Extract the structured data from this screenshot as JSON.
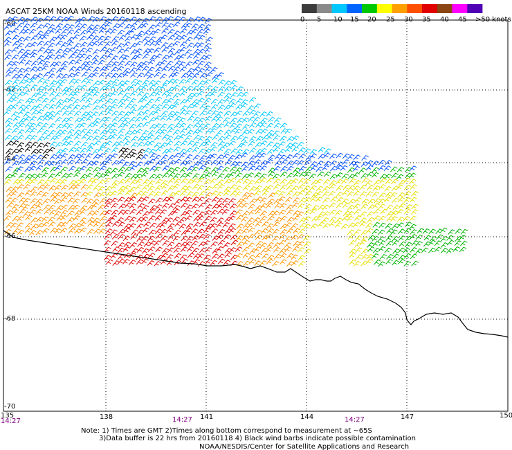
{
  "title": "ASCAT 25KM NOAA Winds 20160118 ascending",
  "legend": {
    "labels": [
      "0",
      "5",
      "10",
      "15",
      "20",
      "25",
      "30",
      "35",
      "40",
      "45",
      ">50 knots"
    ],
    "colors": [
      "#3c3c3c",
      "#8a8a8a",
      "#00c8ff",
      "#0064ff",
      "#00c800",
      "#ffff00",
      "#ffa000",
      "#ff5000",
      "#e00000",
      "#8b4513",
      "#ff00ff",
      "#5000b4"
    ]
  },
  "axes": {
    "lon_labels": [
      "135",
      "138",
      "141",
      "144",
      "147",
      "150"
    ],
    "lat_labels": [
      "-60",
      "-62",
      "-64",
      "-66",
      "-68",
      "-70"
    ]
  },
  "times": [
    "14:27",
    "14:27",
    "14:27"
  ],
  "notes": [
    "Note: 1) Times are GMT 2)Times along bottom correspond to measurement at ~65S",
    "3)Data buffer is 22 hrs from 20160118 4) Black wind barbs indicate possible contamination",
    "NOAA/NESDIS/Center for Satellite Applications and Research"
  ],
  "barb_colors": {
    "cyan": "#00c8ff",
    "blue": "#0050ff",
    "green": "#00b400",
    "yellow": "#e8e000",
    "orange": "#ff9600",
    "red": "#e00000",
    "black": "#000000"
  }
}
